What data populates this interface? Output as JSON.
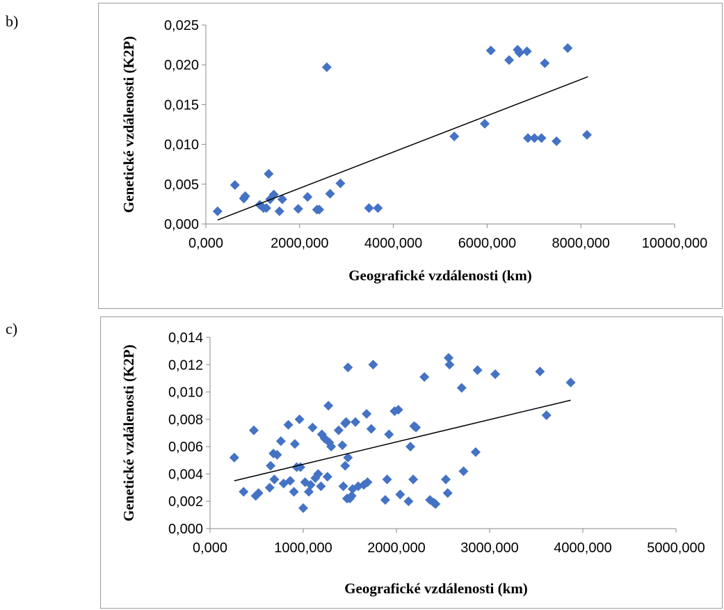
{
  "panels": [
    {
      "label": "b)"
    },
    {
      "label": "c)"
    }
  ],
  "colors": {
    "marker": "#4472C4",
    "trendline": "#000000",
    "axis": "#888888",
    "frame": "#9a9a9a"
  },
  "chart_data": [
    {
      "type": "scatter",
      "xlabel": "Geografické vzdálenosti (km)",
      "ylabel": "Genetické vzdálenosti (K2P)",
      "xlim": [
        0,
        10000
      ],
      "ylim": [
        0,
        0.025
      ],
      "x_ticks": [
        0,
        2000,
        4000,
        6000,
        8000,
        10000
      ],
      "x_tick_labels": [
        "0,000",
        "2000,000",
        "4000,000",
        "6000,000",
        "8000,000",
        "10000,000"
      ],
      "y_ticks": [
        0,
        0.005,
        0.01,
        0.015,
        0.02,
        0.025
      ],
      "y_tick_labels": [
        "0,000",
        "0,005",
        "0,010",
        "0,015",
        "0,020",
        "0,025"
      ],
      "grid": false,
      "marker": "diamond",
      "trendline": {
        "type": "linear",
        "x": [
          250,
          8150
        ],
        "y": [
          0.0005,
          0.0185
        ]
      },
      "points": [
        [
          250,
          0.0016
        ],
        [
          620,
          0.0049
        ],
        [
          810,
          0.0032
        ],
        [
          840,
          0.0035
        ],
        [
          1150,
          0.0024
        ],
        [
          1230,
          0.002
        ],
        [
          1290,
          0.002
        ],
        [
          1340,
          0.0063
        ],
        [
          1370,
          0.0031
        ],
        [
          1450,
          0.0037
        ],
        [
          1570,
          0.0016
        ],
        [
          1630,
          0.0031
        ],
        [
          1970,
          0.0019
        ],
        [
          2170,
          0.0034
        ],
        [
          2370,
          0.0018
        ],
        [
          2420,
          0.0018
        ],
        [
          2580,
          0.0197
        ],
        [
          2650,
          0.0038
        ],
        [
          2870,
          0.0051
        ],
        [
          3480,
          0.002
        ],
        [
          3670,
          0.002
        ],
        [
          5300,
          0.011
        ],
        [
          5950,
          0.0126
        ],
        [
          6080,
          0.0218
        ],
        [
          6470,
          0.0206
        ],
        [
          6650,
          0.0219
        ],
        [
          6690,
          0.0215
        ],
        [
          6850,
          0.0217
        ],
        [
          6870,
          0.0108
        ],
        [
          7010,
          0.0108
        ],
        [
          7160,
          0.0108
        ],
        [
          7230,
          0.0202
        ],
        [
          7480,
          0.0104
        ],
        [
          7720,
          0.0221
        ],
        [
          8130,
          0.0112
        ]
      ]
    },
    {
      "type": "scatter",
      "xlabel": "Geografické vzdálenosti (km)",
      "ylabel": "Genetické vzdálenosti (K2P)",
      "xlim": [
        0,
        5000
      ],
      "ylim": [
        0,
        0.014
      ],
      "x_ticks": [
        0,
        1000,
        2000,
        3000,
        4000,
        5000
      ],
      "x_tick_labels": [
        "0,000",
        "1000,000",
        "2000,000",
        "3000,000",
        "4000,000",
        "5000,000"
      ],
      "y_ticks": [
        0,
        0.002,
        0.004,
        0.006,
        0.008,
        0.01,
        0.012,
        0.014
      ],
      "y_tick_labels": [
        "0,000",
        "0,002",
        "0,004",
        "0,006",
        "0,008",
        "0,010",
        "0,012",
        "0,014"
      ],
      "grid": false,
      "marker": "diamond",
      "trendline": {
        "type": "linear",
        "x": [
          260,
          3870
        ],
        "y": [
          0.0035,
          0.0094
        ]
      },
      "points": [
        [
          260,
          0.0052
        ],
        [
          360,
          0.0027
        ],
        [
          470,
          0.0072
        ],
        [
          490,
          0.0024
        ],
        [
          520,
          0.0026
        ],
        [
          640,
          0.003
        ],
        [
          650,
          0.0046
        ],
        [
          680,
          0.0055
        ],
        [
          690,
          0.0036
        ],
        [
          720,
          0.0054
        ],
        [
          760,
          0.0064
        ],
        [
          790,
          0.0033
        ],
        [
          840,
          0.0076
        ],
        [
          860,
          0.0035
        ],
        [
          900,
          0.0027
        ],
        [
          910,
          0.0062
        ],
        [
          930,
          0.0045
        ],
        [
          960,
          0.008
        ],
        [
          970,
          0.0045
        ],
        [
          1020,
          0.0034
        ],
        [
          1000,
          0.0015
        ],
        [
          1060,
          0.0027
        ],
        [
          1080,
          0.0032
        ],
        [
          1100,
          0.0074
        ],
        [
          1130,
          0.0037
        ],
        [
          1160,
          0.004
        ],
        [
          1190,
          0.0031
        ],
        [
          1200,
          0.0069
        ],
        [
          1230,
          0.0066
        ],
        [
          1260,
          0.0038
        ],
        [
          1270,
          0.009
        ],
        [
          1280,
          0.0063
        ],
        [
          1300,
          0.006
        ],
        [
          1380,
          0.0072
        ],
        [
          1420,
          0.0061
        ],
        [
          1430,
          0.0031
        ],
        [
          1450,
          0.0046
        ],
        [
          1450,
          0.0077
        ],
        [
          1460,
          0.0078
        ],
        [
          1470,
          0.0022
        ],
        [
          1480,
          0.0118
        ],
        [
          1480,
          0.0052
        ],
        [
          1500,
          0.0022
        ],
        [
          1520,
          0.0024
        ],
        [
          1530,
          0.0029
        ],
        [
          1560,
          0.0078
        ],
        [
          1590,
          0.0031
        ],
        [
          1650,
          0.0032
        ],
        [
          1680,
          0.0084
        ],
        [
          1690,
          0.0034
        ],
        [
          1730,
          0.0073
        ],
        [
          1750,
          0.012
        ],
        [
          1880,
          0.0021
        ],
        [
          1900,
          0.0036
        ],
        [
          1920,
          0.0069
        ],
        [
          1980,
          0.0086
        ],
        [
          2020,
          0.0087
        ],
        [
          2040,
          0.0025
        ],
        [
          2130,
          0.002
        ],
        [
          2150,
          0.006
        ],
        [
          2180,
          0.0036
        ],
        [
          2190,
          0.0075
        ],
        [
          2210,
          0.0074
        ],
        [
          2300,
          0.0111
        ],
        [
          2360,
          0.0021
        ],
        [
          2400,
          0.0019
        ],
        [
          2420,
          0.0018
        ],
        [
          2530,
          0.0036
        ],
        [
          2550,
          0.0026
        ],
        [
          2560,
          0.0125
        ],
        [
          2570,
          0.012
        ],
        [
          2700,
          0.0103
        ],
        [
          2720,
          0.0042
        ],
        [
          2850,
          0.0056
        ],
        [
          2870,
          0.0116
        ],
        [
          3060,
          0.0113
        ],
        [
          3540,
          0.0115
        ],
        [
          3610,
          0.0083
        ],
        [
          3870,
          0.0107
        ]
      ]
    }
  ]
}
